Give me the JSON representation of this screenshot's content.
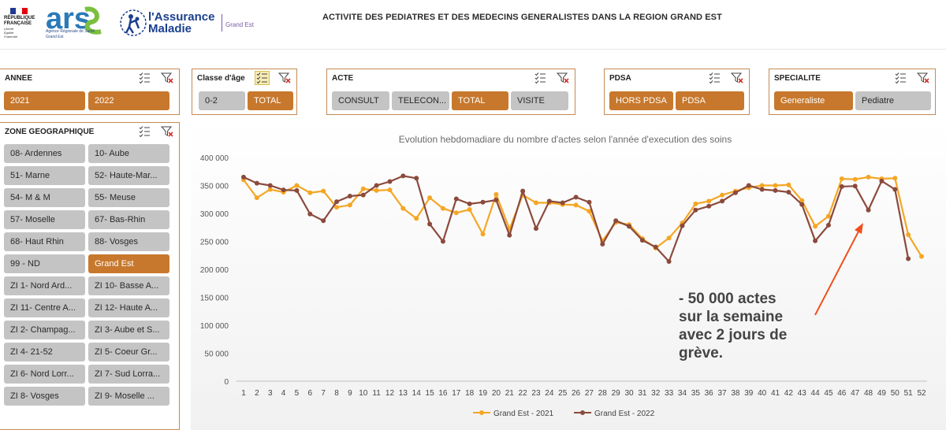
{
  "header": {
    "rf_line1": "RÉPUBLIQUE",
    "rf_line2": "FRANÇAISE",
    "rf_motto1": "Liberté",
    "rf_motto2": "Égalité",
    "rf_motto3": "Fraternité",
    "ars_word": "ars",
    "ars_sub1": "Agence Régionale de Santé",
    "ars_sub2": "Grand Est",
    "am_line1": "l'Assurance",
    "am_line2": "Maladie",
    "region_label": "Grand Est",
    "title": "ACTIVITE DES PEDIATRES ET DES MEDECINS GENERALISTES DANS LA REGION GRAND EST"
  },
  "colors": {
    "accent": "#c7782c",
    "line_2021": "#f5a623",
    "line_2022": "#8b4a3c",
    "arrow": "#f0501e"
  },
  "icons": {
    "multi_select": "multi-select-icon",
    "clear_filter": "clear-filter-icon"
  },
  "slicers": {
    "annee": {
      "title": "ANNEE",
      "items": [
        {
          "label": "2021",
          "selected": true
        },
        {
          "label": "2022",
          "selected": true
        }
      ]
    },
    "classe_age": {
      "title": "Classe d'âge",
      "multi_select_active": true,
      "items": [
        {
          "label": "0-2",
          "selected": false
        },
        {
          "label": "TOTAL",
          "selected": true
        }
      ]
    },
    "acte": {
      "title": "ACTE",
      "items": [
        {
          "label": "CONSULT",
          "selected": false
        },
        {
          "label": "TELECON...",
          "selected": false
        },
        {
          "label": "TOTAL",
          "selected": true
        },
        {
          "label": "VISITE",
          "selected": false
        }
      ]
    },
    "pdsa": {
      "title": "PDSA",
      "items": [
        {
          "label": "HORS PDSA",
          "selected": true
        },
        {
          "label": "PDSA",
          "selected": true
        }
      ]
    },
    "specialite": {
      "title": "SPECIALITE",
      "items": [
        {
          "label": "Generaliste",
          "selected": true
        },
        {
          "label": "Pediatre",
          "selected": false
        }
      ]
    },
    "zone": {
      "title": "ZONE GEOGRAPHIQUE",
      "items": [
        {
          "label": "08- Ardennes",
          "selected": false
        },
        {
          "label": "10- Aube",
          "selected": false
        },
        {
          "label": "51- Marne",
          "selected": false
        },
        {
          "label": "52- Haute-Mar...",
          "selected": false
        },
        {
          "label": "54- M & M",
          "selected": false
        },
        {
          "label": "55- Meuse",
          "selected": false
        },
        {
          "label": "57- Moselle",
          "selected": false
        },
        {
          "label": "67- Bas-Rhin",
          "selected": false
        },
        {
          "label": "68- Haut Rhin",
          "selected": false
        },
        {
          "label": "88- Vosges",
          "selected": false
        },
        {
          "label": "99 - ND",
          "selected": false
        },
        {
          "label": "Grand Est",
          "selected": true
        },
        {
          "label": "ZI 1- Nord Ard...",
          "selected": false
        },
        {
          "label": "ZI 10- Basse A...",
          "selected": false
        },
        {
          "label": "ZI 11- Centre A...",
          "selected": false
        },
        {
          "label": "ZI 12- Haute A...",
          "selected": false
        },
        {
          "label": "ZI 2- Champag...",
          "selected": false
        },
        {
          "label": "ZI 3- Aube et S...",
          "selected": false
        },
        {
          "label": "ZI 4- 21-52",
          "selected": false
        },
        {
          "label": "ZI 5- Coeur Gr...",
          "selected": false
        },
        {
          "label": "ZI 6- Nord Lorr...",
          "selected": false
        },
        {
          "label": "ZI 7- Sud Lorra...",
          "selected": false
        },
        {
          "label": "ZI 8- Vosges",
          "selected": false
        },
        {
          "label": "ZI 9- Moselle ...",
          "selected": false
        }
      ]
    }
  },
  "chart_data": {
    "type": "line",
    "title": "Evolution hebdomadiare du nombre d'actes selon l'année d'execution des soins",
    "xlabel": "",
    "ylabel": "",
    "ylim": [
      0,
      400000
    ],
    "y_ticks": [
      "0",
      "50 000",
      "100 000",
      "150 000",
      "200 000",
      "250 000",
      "300 000",
      "350 000",
      "400 000"
    ],
    "x": [
      1,
      2,
      3,
      4,
      5,
      6,
      7,
      8,
      9,
      10,
      11,
      12,
      13,
      14,
      15,
      16,
      17,
      18,
      19,
      20,
      21,
      22,
      23,
      24,
      25,
      26,
      27,
      28,
      29,
      30,
      31,
      32,
      33,
      34,
      35,
      36,
      37,
      38,
      39,
      40,
      41,
      42,
      43,
      44,
      45,
      46,
      47,
      48,
      49,
      50,
      51,
      52
    ],
    "grid": false,
    "legend": "bottom",
    "series": [
      {
        "name": "Grand Est - 2021",
        "color": "#f5a623",
        "values": [
          360000,
          328000,
          343000,
          338000,
          350000,
          337000,
          340000,
          311000,
          315000,
          344000,
          341000,
          342000,
          309000,
          291000,
          328000,
          309000,
          301000,
          307000,
          263000,
          334000,
          272000,
          333000,
          319000,
          319000,
          316000,
          315000,
          304000,
          251000,
          284000,
          280000,
          255000,
          238000,
          256000,
          283000,
          317000,
          322000,
          333000,
          340000,
          346000,
          350000,
          350000,
          351000,
          323000,
          277000,
          295000,
          362000,
          361000,
          365000,
          362000,
          363000,
          262000,
          223000
        ]
      },
      {
        "name": "Grand Est - 2022",
        "color": "#8b4a3c",
        "values": [
          365000,
          354000,
          350000,
          342000,
          341000,
          299000,
          287000,
          321000,
          331000,
          333000,
          350000,
          357000,
          367000,
          363000,
          281000,
          250000,
          326000,
          317000,
          320000,
          324000,
          261000,
          340000,
          273000,
          322000,
          319000,
          329000,
          320000,
          245000,
          287000,
          277000,
          252000,
          240000,
          214000,
          278000,
          306000,
          313000,
          322000,
          337000,
          350000,
          343000,
          341000,
          338000,
          316000,
          251000,
          279000,
          348000,
          349000,
          306000,
          358000,
          343000,
          219000,
          null
        ]
      }
    ]
  },
  "annotation": {
    "lines": [
      "- 50 000 actes",
      "sur la semaine",
      "avec 2 jours de",
      "grève."
    ]
  }
}
